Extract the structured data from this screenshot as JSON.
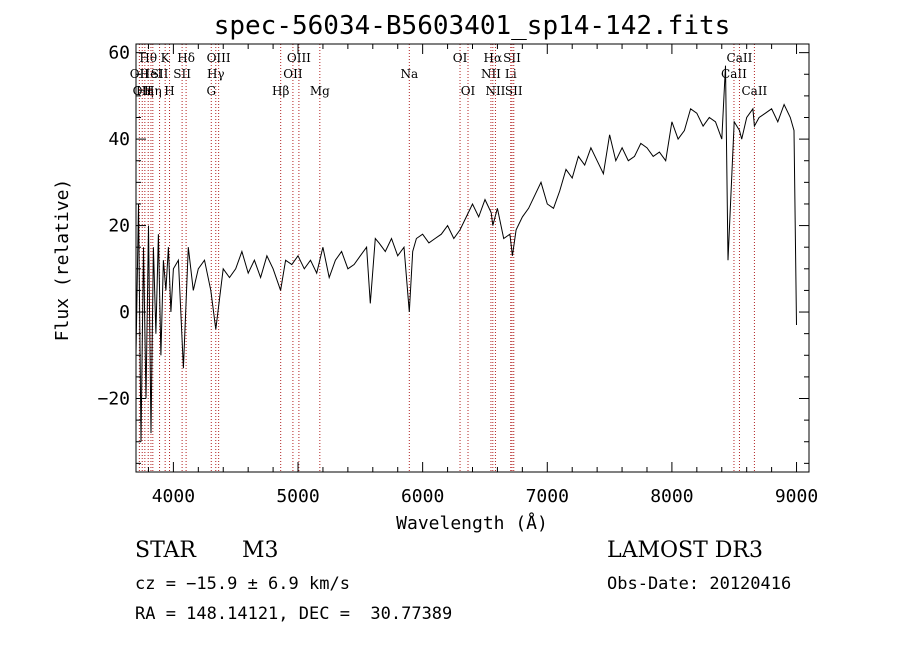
{
  "chart_data": {
    "type": "line",
    "title": "spec-56034-B5603401_sp14-142.fits",
    "xlabel": "Wavelength (Å)",
    "ylabel": "Flux (relative)",
    "xlim": [
      3700,
      9100
    ],
    "ylim": [
      -37,
      62
    ],
    "xticks": [
      4000,
      5000,
      6000,
      7000,
      8000,
      9000
    ],
    "yticks": [
      -20,
      0,
      20,
      40,
      60
    ],
    "grid": false,
    "series": [
      {
        "x": [
          3700,
          3720,
          3740,
          3760,
          3780,
          3800,
          3820,
          3840,
          3860,
          3880,
          3900,
          3920,
          3940,
          3960,
          3980,
          4000,
          4040,
          4080,
          4120,
          4160,
          4200,
          4250,
          4300,
          4340,
          4400,
          4450,
          4500,
          4550,
          4600,
          4650,
          4700,
          4750,
          4800,
          4860,
          4900,
          4950,
          5000,
          5050,
          5100,
          5150,
          5200,
          5250,
          5300,
          5350,
          5400,
          5450,
          5500,
          5550,
          5580,
          5620,
          5650,
          5700,
          5750,
          5800,
          5850,
          5893,
          5920,
          5950,
          6000,
          6050,
          6100,
          6150,
          6200,
          6250,
          6300,
          6350,
          6400,
          6450,
          6500,
          6550,
          6563,
          6600,
          6650,
          6700,
          6720,
          6750,
          6800,
          6850,
          6900,
          6950,
          7000,
          7050,
          7100,
          7150,
          7200,
          7250,
          7300,
          7350,
          7400,
          7450,
          7500,
          7550,
          7600,
          7650,
          7700,
          7750,
          7800,
          7850,
          7900,
          7950,
          8000,
          8050,
          8100,
          8150,
          8200,
          8250,
          8300,
          8350,
          8400,
          8430,
          8450,
          8500,
          8542,
          8560,
          8600,
          8650,
          8662,
          8700,
          8750,
          8800,
          8850,
          8900,
          8950,
          8980,
          9000
        ],
        "y": [
          -10,
          25,
          -30,
          15,
          -20,
          20,
          -28,
          15,
          -5,
          18,
          -10,
          12,
          5,
          15,
          0,
          10,
          12,
          -13,
          15,
          5,
          10,
          12,
          5,
          -4,
          10,
          8,
          10,
          14,
          9,
          12,
          8,
          13,
          10,
          5,
          12,
          11,
          13,
          10,
          12,
          9,
          15,
          8,
          12,
          14,
          10,
          11,
          13,
          15,
          2,
          17,
          16,
          14,
          17,
          13,
          15,
          0,
          14,
          17,
          18,
          16,
          17,
          18,
          20,
          17,
          19,
          22,
          25,
          22,
          26,
          23,
          20,
          24,
          17,
          18,
          13,
          19,
          22,
          24,
          27,
          30,
          25,
          24,
          28,
          33,
          31,
          36,
          34,
          38,
          35,
          32,
          41,
          35,
          38,
          35,
          36,
          39,
          38,
          36,
          37,
          35,
          44,
          40,
          42,
          47,
          46,
          43,
          45,
          44,
          40,
          57,
          12,
          44,
          42,
          40,
          45,
          47,
          43,
          45,
          46,
          47,
          44,
          48,
          45,
          42,
          -3
        ]
      }
    ],
    "line_markers": [
      {
        "x": 3727,
        "label": "OII",
        "row": 2
      },
      {
        "x": 3750,
        "label": "OII",
        "row": 3
      },
      {
        "x": 3771,
        "label": "Hη",
        "row": 3
      },
      {
        "x": 3798,
        "label": "Hθ",
        "row": 1
      },
      {
        "x": 3820,
        "label": "HeI",
        "row": 2
      },
      {
        "x": 3835,
        "label": "Hη",
        "row": 3
      },
      {
        "x": 3889,
        "label": "SII",
        "row": 2
      },
      {
        "x": 3934,
        "label": "K",
        "row": 1
      },
      {
        "x": 3969,
        "label": "H",
        "row": 3
      },
      {
        "x": 4102,
        "label": "Hδ",
        "row": 1
      },
      {
        "x": 4070,
        "label": "SII",
        "row": 2
      },
      {
        "x": 4304,
        "label": "G",
        "row": 3
      },
      {
        "x": 4340,
        "label": "Hγ",
        "row": 2
      },
      {
        "x": 4363,
        "label": "OIII",
        "row": 1
      },
      {
        "x": 4861,
        "label": "Hβ",
        "row": 3
      },
      {
        "x": 4959,
        "label": "OII",
        "row": 2
      },
      {
        "x": 5007,
        "label": "OIII",
        "row": 1
      },
      {
        "x": 5175,
        "label": "Mg",
        "row": 3
      },
      {
        "x": 5893,
        "label": "Na",
        "row": 2
      },
      {
        "x": 6300,
        "label": "OI",
        "row": 1
      },
      {
        "x": 6364,
        "label": "OI",
        "row": 3
      },
      {
        "x": 6548,
        "label": "NII",
        "row": 2
      },
      {
        "x": 6563,
        "label": "Hα",
        "row": 1
      },
      {
        "x": 6584,
        "label": "NII",
        "row": 3
      },
      {
        "x": 6717,
        "label": "SII",
        "row": 1
      },
      {
        "x": 6707,
        "label": "Li",
        "row": 2
      },
      {
        "x": 6731,
        "label": "SII",
        "row": 3
      },
      {
        "x": 8498,
        "label": "CaII",
        "row": 2
      },
      {
        "x": 8542,
        "label": "CaII",
        "row": 1
      },
      {
        "x": 8662,
        "label": "CaII",
        "row": 3
      }
    ],
    "colors": {
      "spectrum": "#000000",
      "marker": "#b22222",
      "axes": "#000000"
    }
  },
  "info": {
    "class": "STAR",
    "subclass": "M3",
    "survey": "LAMOST DR3",
    "cz": "cz = −15.9 ± 6.9 km/s",
    "obs_date": "Obs-Date: 20120416",
    "radec": "RA = 148.14121, DEC =  30.77389"
  }
}
